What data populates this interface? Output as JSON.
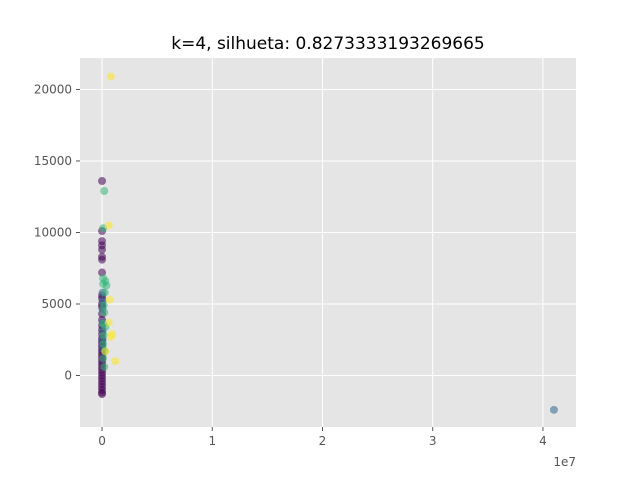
{
  "chart_data": {
    "type": "scatter",
    "title": "k=4, silhueta: 0.8273333193269665",
    "xlabel": "",
    "ylabel": "",
    "x_offset_label": "1e7",
    "xlim": [
      -2000000,
      43000000
    ],
    "ylim": [
      -3600,
      22200
    ],
    "x_ticks": [
      0,
      10000000,
      20000000,
      30000000,
      40000000
    ],
    "x_tick_labels": [
      "0",
      "1",
      "2",
      "3",
      "4"
    ],
    "y_ticks": [
      0,
      5000,
      10000,
      15000,
      20000
    ],
    "y_tick_labels": [
      "0",
      "5000",
      "10000",
      "15000",
      "20000"
    ],
    "grid": true,
    "background": "#e5e5e5",
    "series": [
      {
        "color": "#440154",
        "points": [
          [
            0,
            13600
          ],
          [
            0,
            10100
          ],
          [
            0,
            9400
          ],
          [
            0,
            9100
          ],
          [
            0,
            8800
          ],
          [
            0,
            8300
          ],
          [
            0,
            8100
          ],
          [
            0,
            7200
          ],
          [
            0,
            5600
          ],
          [
            0,
            5400
          ],
          [
            0,
            5000
          ],
          [
            0,
            4800
          ],
          [
            0,
            4300
          ],
          [
            0,
            3900
          ],
          [
            0,
            3500
          ],
          [
            0,
            3200
          ],
          [
            0,
            2900
          ],
          [
            0,
            2600
          ],
          [
            0,
            2400
          ],
          [
            0,
            2200
          ],
          [
            0,
            2000
          ],
          [
            0,
            1800
          ],
          [
            0,
            1600
          ],
          [
            0,
            1400
          ],
          [
            0,
            1200
          ],
          [
            0,
            1000
          ],
          [
            0,
            800
          ],
          [
            0,
            600
          ],
          [
            0,
            400
          ],
          [
            0,
            200
          ],
          [
            0,
            0
          ],
          [
            0,
            -200
          ],
          [
            0,
            -400
          ],
          [
            0,
            -600
          ],
          [
            0,
            -800
          ],
          [
            0,
            -1000
          ],
          [
            0,
            -1200
          ],
          [
            0,
            -1300
          ]
        ]
      },
      {
        "color": "#31688e",
        "points": [
          [
            41000000,
            -2400
          ],
          [
            50000,
            5800
          ],
          [
            50000,
            5200
          ],
          [
            50000,
            4600
          ],
          [
            50000,
            3700
          ],
          [
            50000,
            3100
          ],
          [
            50000,
            2500
          ],
          [
            50000,
            1900
          ]
        ]
      },
      {
        "color": "#35b779",
        "points": [
          [
            200000,
            12900
          ],
          [
            100000,
            10300
          ],
          [
            100000,
            6800
          ],
          [
            100000,
            6400
          ],
          [
            300000,
            6600
          ],
          [
            400000,
            6300
          ],
          [
            250000,
            5800
          ],
          [
            150000,
            4900
          ],
          [
            200000,
            4400
          ],
          [
            100000,
            3600
          ],
          [
            300000,
            3400
          ],
          [
            150000,
            2800
          ],
          [
            100000,
            2200
          ],
          [
            250000,
            1700
          ],
          [
            100000,
            1200
          ],
          [
            200000,
            600
          ]
        ]
      },
      {
        "color": "#fde725",
        "points": [
          [
            800000,
            20900
          ],
          [
            600000,
            10500
          ],
          [
            700000,
            5300
          ],
          [
            600000,
            3700
          ],
          [
            900000,
            2900
          ],
          [
            800000,
            2700
          ],
          [
            1200000,
            1000
          ],
          [
            300000,
            1700
          ]
        ]
      }
    ]
  }
}
